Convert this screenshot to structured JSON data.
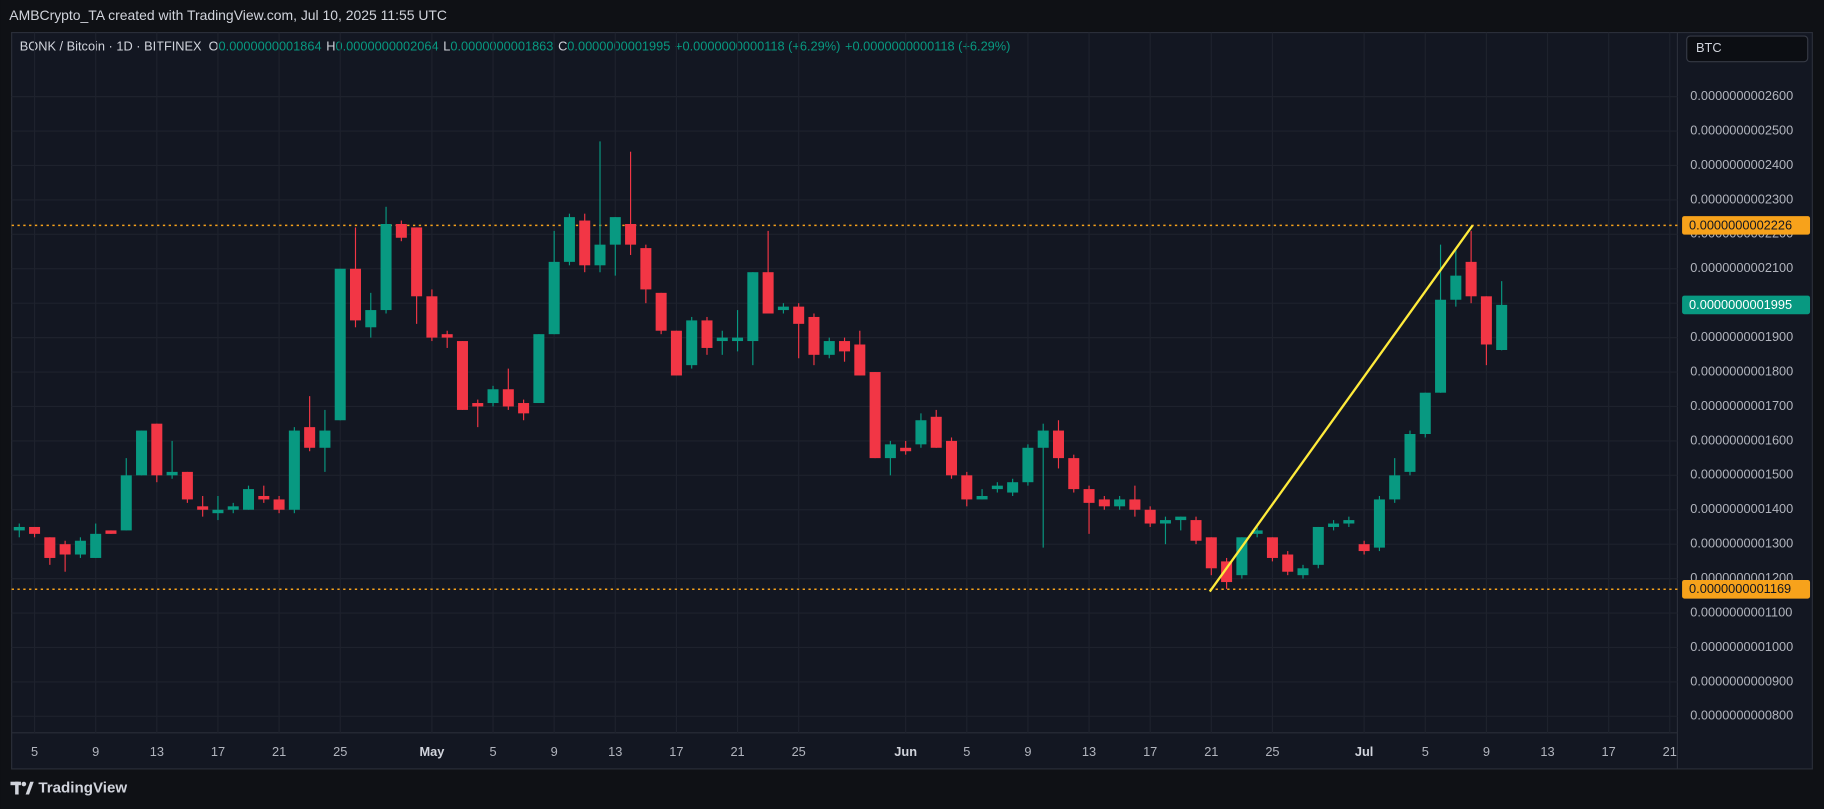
{
  "attribution": "AMBCrypto_TA created with TradingView.com, Jul 10, 2025 11:55 UTC",
  "footer": "TradingView",
  "currency": "BTC",
  "chart_data": {
    "type": "candlestick",
    "legend": {
      "symbol": "BONK / Bitcoin · 1D · BITFINEX",
      "fields": [
        {
          "key": "O",
          "value": "0.0000000001864"
        },
        {
          "key": "H",
          "value": "0.0000000002064"
        },
        {
          "key": "L",
          "value": "0.0000000001863"
        },
        {
          "key": "C",
          "value": "0.0000000001995"
        }
      ],
      "changes": [
        "+0.0000000000118 (+6.29%)",
        "+0.0000000000118 (+6.29%)"
      ]
    },
    "up_color": "#089981",
    "down_color": "#f23645",
    "grid": true,
    "categories": [
      null,
      "5",
      null,
      null,
      null,
      "9",
      null,
      null,
      null,
      "13",
      null,
      null,
      null,
      "17",
      null,
      null,
      null,
      "21",
      null,
      null,
      null,
      "25",
      null,
      null,
      null,
      null,
      null,
      "May",
      null,
      null,
      null,
      "5",
      null,
      null,
      null,
      "9",
      null,
      null,
      null,
      "13",
      null,
      null,
      null,
      "17",
      null,
      null,
      null,
      "21",
      null,
      null,
      null,
      "25",
      null,
      null,
      null,
      null,
      null,
      null,
      "Jun",
      null,
      null,
      null,
      "5",
      null,
      null,
      null,
      "9",
      null,
      null,
      null,
      "13",
      null,
      null,
      null,
      "17",
      null,
      null,
      null,
      "21",
      null,
      null,
      null,
      "25",
      null,
      null,
      null,
      null,
      null,
      "Jul",
      null,
      null,
      null,
      "5",
      null,
      null,
      null,
      "9",
      null,
      null,
      null,
      "13",
      null,
      null,
      null,
      "17",
      null,
      null,
      null,
      "21"
    ],
    "open": [
      1.34e-10,
      1.35e-10,
      1.32e-10,
      1.3e-10,
      1.27e-10,
      1.26e-10,
      1.34e-10,
      1.34e-10,
      1.5e-10,
      1.65e-10,
      1.5e-10,
      1.51e-10,
      1.41e-10,
      1.39e-10,
      1.4e-10,
      1.4e-10,
      1.44e-10,
      1.43e-10,
      1.4e-10,
      1.64e-10,
      1.58e-10,
      1.66e-10,
      2.1e-10,
      1.93e-10,
      1.98e-10,
      2.23e-10,
      2.22e-10,
      2.02e-10,
      1.91e-10,
      1.89e-10,
      1.71e-10,
      1.71e-10,
      1.75e-10,
      1.71e-10,
      1.71e-10,
      1.91e-10,
      2.12e-10,
      2.24e-10,
      2.11e-10,
      2.17e-10,
      2.23e-10,
      2.16e-10,
      2.03e-10,
      1.92e-10,
      1.82e-10,
      1.95e-10,
      1.89e-10,
      1.89e-10,
      1.89e-10,
      2.09e-10,
      1.98e-10,
      1.99e-10,
      1.96e-10,
      1.85e-10,
      1.89e-10,
      1.88e-10,
      1.8e-10,
      1.55e-10,
      1.58e-10,
      1.59e-10,
      1.67e-10,
      1.6e-10,
      1.5e-10,
      1.43e-10,
      1.46e-10,
      1.45e-10,
      1.48e-10,
      1.58e-10,
      1.63e-10,
      1.55e-10,
      1.46e-10,
      1.43e-10,
      1.41e-10,
      1.43e-10,
      1.4e-10,
      1.36e-10,
      1.37e-10,
      1.37e-10,
      1.32e-10,
      1.25e-10,
      1.21e-10,
      1.33e-10,
      1.32e-10,
      1.27e-10,
      1.21e-10,
      1.24e-10,
      1.35e-10,
      1.36e-10,
      1.3e-10,
      1.29e-10,
      1.43e-10,
      1.51e-10,
      1.62e-10,
      1.74e-10,
      2.01e-10,
      2.12e-10,
      2.02e-10,
      1.864e-10,
      null,
      null,
      null,
      null,
      null,
      null,
      null,
      null,
      null,
      null,
      null
    ],
    "high": [
      1.36e-10,
      1.35e-10,
      1.32e-10,
      1.31e-10,
      1.32e-10,
      1.36e-10,
      1.34e-10,
      1.55e-10,
      1.63e-10,
      1.65e-10,
      1.6e-10,
      1.51e-10,
      1.44e-10,
      1.44e-10,
      1.42e-10,
      1.47e-10,
      1.47e-10,
      1.44e-10,
      1.64e-10,
      1.73e-10,
      1.69e-10,
      2.1e-10,
      2.22e-10,
      2.03e-10,
      2.28e-10,
      2.24e-10,
      2.22e-10,
      2.04e-10,
      1.92e-10,
      1.89e-10,
      1.72e-10,
      1.76e-10,
      1.81e-10,
      1.72e-10,
      1.91e-10,
      2.21e-10,
      2.26e-10,
      2.26e-10,
      2.47e-10,
      2.25e-10,
      2.44e-10,
      2.17e-10,
      2.03e-10,
      1.92e-10,
      1.96e-10,
      1.96e-10,
      1.92e-10,
      1.98e-10,
      2.09e-10,
      2.21e-10,
      2e-10,
      2e-10,
      1.97e-10,
      1.9e-10,
      1.9e-10,
      1.92e-10,
      1.8e-10,
      1.6e-10,
      1.6e-10,
      1.68e-10,
      1.69e-10,
      1.61e-10,
      1.51e-10,
      1.46e-10,
      1.48e-10,
      1.49e-10,
      1.59e-10,
      1.65e-10,
      1.66e-10,
      1.56e-10,
      1.47e-10,
      1.44e-10,
      1.44e-10,
      1.47e-10,
      1.41e-10,
      1.38e-10,
      1.38e-10,
      1.38e-10,
      1.32e-10,
      1.26e-10,
      1.32e-10,
      1.35e-10,
      1.32e-10,
      1.28e-10,
      1.24e-10,
      1.35e-10,
      1.37e-10,
      1.38e-10,
      1.31e-10,
      1.44e-10,
      1.55e-10,
      1.63e-10,
      1.74e-10,
      2.17e-10,
      2.16e-10,
      2.21e-10,
      2.02e-10,
      2.064e-10,
      null,
      null,
      null,
      null,
      null,
      null,
      null,
      null,
      null,
      null,
      null
    ],
    "low": [
      1.32e-10,
      1.32e-10,
      1.24e-10,
      1.22e-10,
      1.26e-10,
      1.26e-10,
      1.33e-10,
      1.34e-10,
      1.5e-10,
      1.48e-10,
      1.49e-10,
      1.42e-10,
      1.38e-10,
      1.37e-10,
      1.39e-10,
      1.4e-10,
      1.42e-10,
      1.39e-10,
      1.39e-10,
      1.57e-10,
      1.51e-10,
      1.66e-10,
      1.93e-10,
      1.9e-10,
      1.97e-10,
      2.18e-10,
      1.94e-10,
      1.89e-10,
      1.87e-10,
      1.69e-10,
      1.64e-10,
      1.7e-10,
      1.69e-10,
      1.66e-10,
      1.71e-10,
      1.91e-10,
      2.11e-10,
      2.09e-10,
      2.09e-10,
      2.08e-10,
      2.14e-10,
      2e-10,
      1.91e-10,
      1.79e-10,
      1.81e-10,
      1.85e-10,
      1.85e-10,
      1.86e-10,
      1.82e-10,
      1.97e-10,
      1.97e-10,
      1.84e-10,
      1.82e-10,
      1.84e-10,
      1.83e-10,
      1.79e-10,
      1.55e-10,
      1.5e-10,
      1.56e-10,
      1.58e-10,
      1.58e-10,
      1.49e-10,
      1.41e-10,
      1.43e-10,
      1.45e-10,
      1.44e-10,
      1.47e-10,
      1.29e-10,
      1.52e-10,
      1.45e-10,
      1.33e-10,
      1.4e-10,
      1.4e-10,
      1.38e-10,
      1.35e-10,
      1.3e-10,
      1.34e-10,
      1.3e-10,
      1.21e-10,
      1.17e-10,
      1.2e-10,
      1.32e-10,
      1.25e-10,
      1.21e-10,
      1.2e-10,
      1.23e-10,
      1.34e-10,
      1.35e-10,
      1.27e-10,
      1.28e-10,
      1.42e-10,
      1.5e-10,
      1.61e-10,
      1.74e-10,
      1.99e-10,
      2e-10,
      1.82e-10,
      1.863e-10,
      null,
      null,
      null,
      null,
      null,
      null,
      null,
      null,
      null,
      null,
      null
    ],
    "close": [
      1.35e-10,
      1.33e-10,
      1.26e-10,
      1.27e-10,
      1.31e-10,
      1.33e-10,
      1.33e-10,
      1.5e-10,
      1.63e-10,
      1.5e-10,
      1.51e-10,
      1.43e-10,
      1.4e-10,
      1.4e-10,
      1.41e-10,
      1.46e-10,
      1.43e-10,
      1.4e-10,
      1.63e-10,
      1.58e-10,
      1.63e-10,
      2.1e-10,
      1.95e-10,
      1.98e-10,
      2.23e-10,
      2.19e-10,
      2.02e-10,
      1.9e-10,
      1.9e-10,
      1.69e-10,
      1.7e-10,
      1.75e-10,
      1.7e-10,
      1.68e-10,
      1.91e-10,
      2.12e-10,
      2.25e-10,
      2.11e-10,
      2.17e-10,
      2.25e-10,
      2.17e-10,
      2.04e-10,
      1.92e-10,
      1.79e-10,
      1.95e-10,
      1.87e-10,
      1.9e-10,
      1.9e-10,
      2.09e-10,
      1.97e-10,
      1.99e-10,
      1.94e-10,
      1.85e-10,
      1.89e-10,
      1.86e-10,
      1.79e-10,
      1.55e-10,
      1.59e-10,
      1.57e-10,
      1.66e-10,
      1.58e-10,
      1.5e-10,
      1.43e-10,
      1.44e-10,
      1.47e-10,
      1.48e-10,
      1.58e-10,
      1.63e-10,
      1.55e-10,
      1.46e-10,
      1.42e-10,
      1.41e-10,
      1.43e-10,
      1.4e-10,
      1.36e-10,
      1.37e-10,
      1.38e-10,
      1.31e-10,
      1.23e-10,
      1.19e-10,
      1.32e-10,
      1.34e-10,
      1.26e-10,
      1.22e-10,
      1.23e-10,
      1.35e-10,
      1.36e-10,
      1.37e-10,
      1.28e-10,
      1.43e-10,
      1.5e-10,
      1.62e-10,
      1.74e-10,
      2.01e-10,
      2.08e-10,
      2.02e-10,
      1.88e-10,
      1.995e-10,
      null,
      null,
      null,
      null,
      null,
      null,
      null,
      null,
      null,
      null,
      null
    ],
    "ylim": [
      7.52e-11,
      2.786e-10
    ],
    "yticks": [
      {
        "value": 8e-11,
        "label": "0.0000000000800"
      },
      {
        "value": 9e-11,
        "label": "0.0000000000900"
      },
      {
        "value": 1e-10,
        "label": "0.0000000001000"
      },
      {
        "value": 1.1e-10,
        "label": "0.0000000001100"
      },
      {
        "value": 1.2e-10,
        "label": "0.0000000001200"
      },
      {
        "value": 1.3e-10,
        "label": "0.0000000001300"
      },
      {
        "value": 1.4e-10,
        "label": "0.0000000001400"
      },
      {
        "value": 1.5e-10,
        "label": "0.0000000001500"
      },
      {
        "value": 1.6e-10,
        "label": "0.0000000001600"
      },
      {
        "value": 1.7e-10,
        "label": "0.0000000001700"
      },
      {
        "value": 1.8e-10,
        "label": "0.0000000001800"
      },
      {
        "value": 1.9e-10,
        "label": "0.0000000001900"
      },
      {
        "value": 2e-10,
        "label": "0.0000000002000"
      },
      {
        "value": 2.1e-10,
        "label": "0.0000000002100"
      },
      {
        "value": 2.2e-10,
        "label": "0.0000000002200"
      },
      {
        "value": 2.3e-10,
        "label": "0.0000000002300"
      },
      {
        "value": 2.4e-10,
        "label": "0.0000000002400"
      },
      {
        "value": 2.5e-10,
        "label": "0.0000000002500"
      },
      {
        "value": 2.6e-10,
        "label": "0.0000000002600"
      }
    ],
    "price_lines": [
      {
        "value": 2.226e-10,
        "label": "0.0000000002226",
        "color": "#f7a21b",
        "text_color": "#131722",
        "dotted": true
      },
      {
        "value": 1.169e-10,
        "label": "0.0000000001169",
        "color": "#f7a21b",
        "text_color": "#131722",
        "dotted": true
      },
      {
        "value": 1.995e-10,
        "label": "0.0000000001995",
        "color": "#089981",
        "text_color": "#ffffff",
        "dotted": false
      }
    ],
    "trend_line_color": "#ffeb3b"
  }
}
